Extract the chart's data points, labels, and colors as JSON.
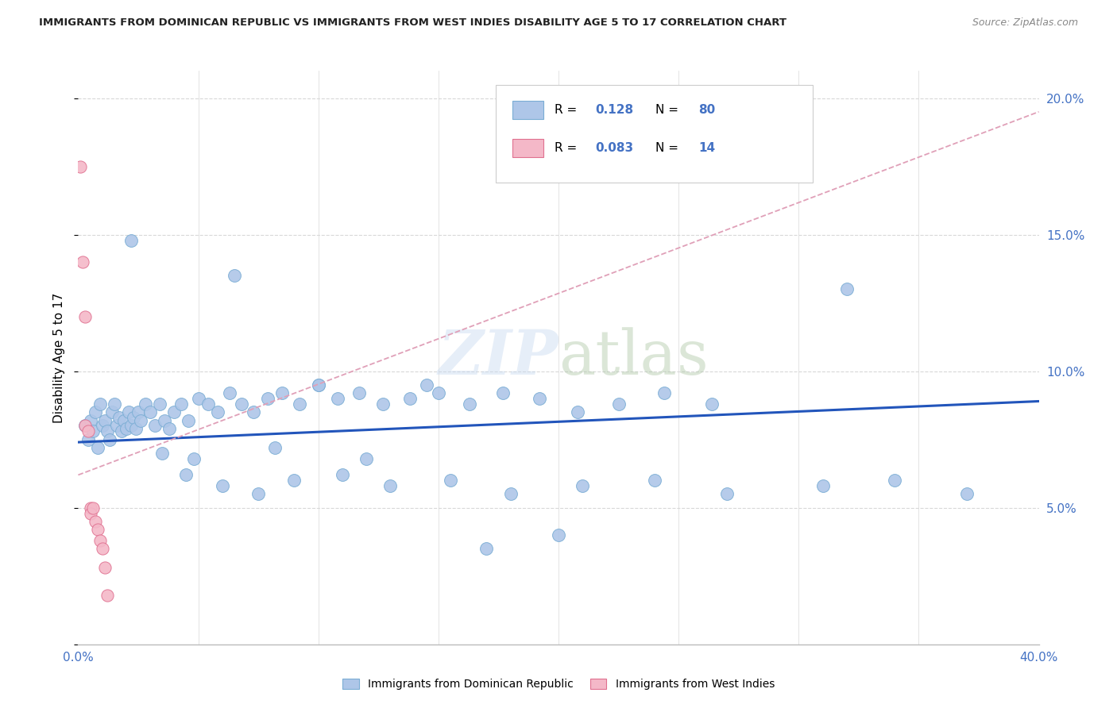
{
  "title": "IMMIGRANTS FROM DOMINICAN REPUBLIC VS IMMIGRANTS FROM WEST INDIES DISABILITY AGE 5 TO 17 CORRELATION CHART",
  "source": "Source: ZipAtlas.com",
  "ylabel": "Disability Age 5 to 17",
  "xlim": [
    0.0,
    0.4
  ],
  "ylim": [
    0.0,
    0.21
  ],
  "background_color": "#ffffff",
  "watermark": "ZIPatlas",
  "series1_color": "#aec6e8",
  "series1_edge": "#7aadd4",
  "series2_color": "#f4b8c8",
  "series2_edge": "#e07090",
  "trend1_color": "#2255bb",
  "trend2_color": "#e0a0b8",
  "grid_color": "#d8d8d8",
  "axis_color": "#4472c4",
  "title_color": "#222222",
  "source_color": "#888888",
  "s1_x": [
    0.003,
    0.004,
    0.005,
    0.006,
    0.007,
    0.008,
    0.009,
    0.01,
    0.011,
    0.012,
    0.013,
    0.014,
    0.015,
    0.016,
    0.017,
    0.018,
    0.019,
    0.02,
    0.021,
    0.022,
    0.023,
    0.024,
    0.025,
    0.026,
    0.028,
    0.03,
    0.032,
    0.034,
    0.036,
    0.038,
    0.04,
    0.043,
    0.046,
    0.05,
    0.054,
    0.058,
    0.063,
    0.068,
    0.073,
    0.079,
    0.085,
    0.092,
    0.1,
    0.108,
    0.117,
    0.127,
    0.138,
    0.15,
    0.163,
    0.177,
    0.192,
    0.208,
    0.225,
    0.244,
    0.264,
    0.045,
    0.06,
    0.075,
    0.09,
    0.11,
    0.13,
    0.155,
    0.18,
    0.21,
    0.24,
    0.27,
    0.31,
    0.34,
    0.37,
    0.022,
    0.035,
    0.048,
    0.065,
    0.082,
    0.1,
    0.12,
    0.145,
    0.17,
    0.2,
    0.32
  ],
  "s1_y": [
    0.08,
    0.075,
    0.082,
    0.078,
    0.085,
    0.072,
    0.088,
    0.08,
    0.082,
    0.078,
    0.075,
    0.085,
    0.088,
    0.08,
    0.083,
    0.078,
    0.082,
    0.079,
    0.085,
    0.08,
    0.083,
    0.079,
    0.085,
    0.082,
    0.088,
    0.085,
    0.08,
    0.088,
    0.082,
    0.079,
    0.085,
    0.088,
    0.082,
    0.09,
    0.088,
    0.085,
    0.092,
    0.088,
    0.085,
    0.09,
    0.092,
    0.088,
    0.095,
    0.09,
    0.092,
    0.088,
    0.09,
    0.092,
    0.088,
    0.092,
    0.09,
    0.085,
    0.088,
    0.092,
    0.088,
    0.062,
    0.058,
    0.055,
    0.06,
    0.062,
    0.058,
    0.06,
    0.055,
    0.058,
    0.06,
    0.055,
    0.058,
    0.06,
    0.055,
    0.148,
    0.07,
    0.068,
    0.135,
    0.072,
    0.095,
    0.068,
    0.095,
    0.035,
    0.04,
    0.13
  ],
  "s2_x": [
    0.001,
    0.002,
    0.003,
    0.003,
    0.004,
    0.005,
    0.005,
    0.006,
    0.007,
    0.008,
    0.009,
    0.01,
    0.011,
    0.012
  ],
  "s2_y": [
    0.175,
    0.14,
    0.12,
    0.08,
    0.078,
    0.05,
    0.048,
    0.05,
    0.045,
    0.042,
    0.038,
    0.035,
    0.028,
    0.018
  ],
  "trend1_x0": 0.0,
  "trend1_x1": 0.4,
  "trend1_y0": 0.074,
  "trend1_y1": 0.089,
  "trend2_x0": 0.0,
  "trend2_x1": 0.4,
  "trend2_y0": 0.062,
  "trend2_y1": 0.195
}
